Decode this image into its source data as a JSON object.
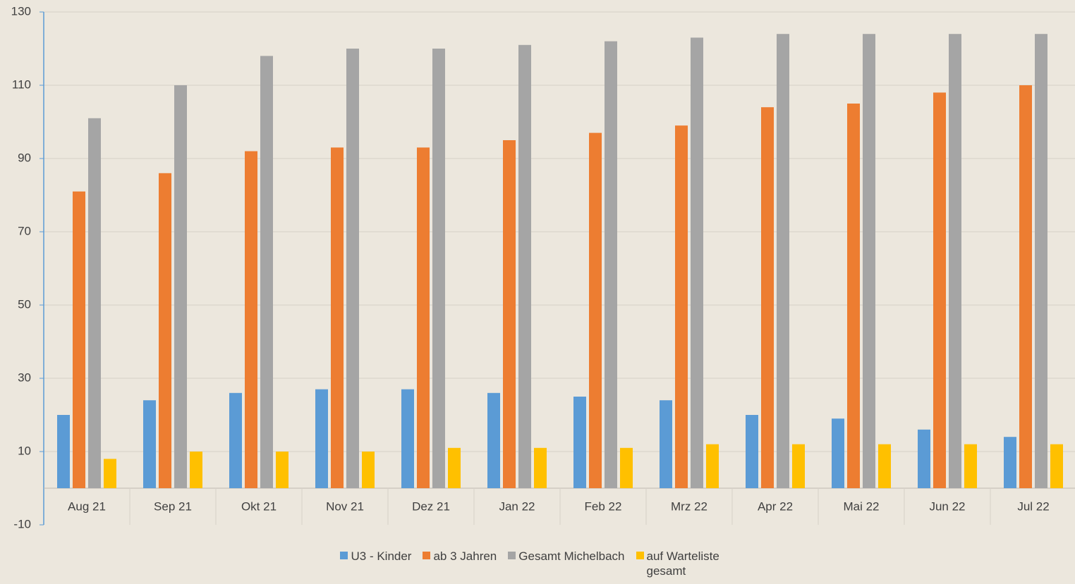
{
  "chart_data": {
    "type": "bar",
    "categories": [
      "Aug 21",
      "Sep 21",
      "Okt 21",
      "Nov 21",
      "Dez 21",
      "Jan 22",
      "Feb 22",
      "Mrz 22",
      "Apr 22",
      "Mai 22",
      "Jun 22",
      "Jul 22"
    ],
    "series": [
      {
        "name": "U3 - Kinder",
        "color": "#5b9bd5",
        "values": [
          20,
          24,
          26,
          27,
          27,
          26,
          25,
          24,
          20,
          19,
          16,
          14
        ]
      },
      {
        "name": "ab 3 Jahren",
        "color": "#ed7d31",
        "values": [
          81,
          86,
          92,
          93,
          93,
          95,
          97,
          99,
          104,
          105,
          108,
          110
        ]
      },
      {
        "name": "Gesamt Michelbach",
        "color": "#a5a5a5",
        "values": [
          101,
          110,
          118,
          120,
          120,
          121,
          122,
          123,
          124,
          124,
          124,
          124
        ]
      },
      {
        "name": "auf Warteliste gesamt",
        "color": "#ffc000",
        "values": [
          8,
          10,
          10,
          10,
          11,
          11,
          11,
          12,
          12,
          12,
          12,
          12
        ]
      }
    ],
    "ylim": [
      -10,
      130
    ],
    "yticks": [
      -10,
      10,
      30,
      50,
      70,
      90,
      110,
      130
    ],
    "grid": true,
    "legend": "bottom"
  }
}
